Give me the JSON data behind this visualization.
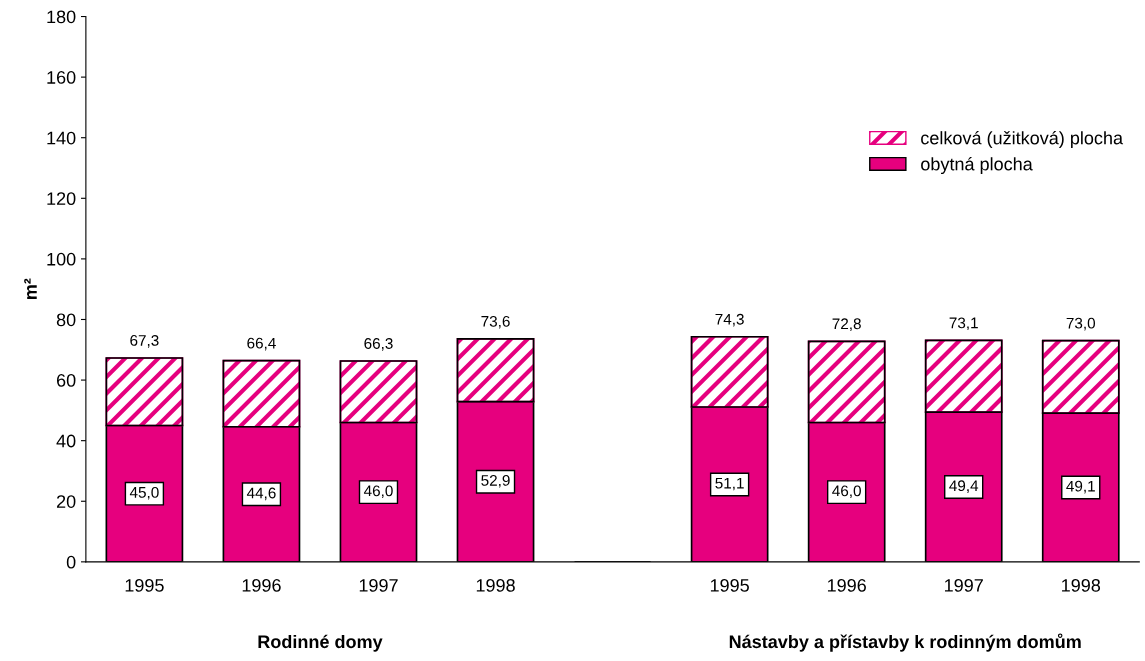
{
  "chart_data": {
    "type": "bar",
    "stacked": true,
    "categories": [
      "1995",
      "1996",
      "1997",
      "1998",
      null,
      "1995",
      "1996",
      "1997",
      "1998"
    ],
    "series": [
      {
        "name": "obytná plocha",
        "color": "#e6007e",
        "values": [
          45.0,
          44.6,
          46.0,
          52.9,
          null,
          51.1,
          46.0,
          49.4,
          49.1
        ],
        "value_labels": [
          "45,0",
          "44,6",
          "46,0",
          "52,9",
          null,
          "51,1",
          "46,0",
          "49,4",
          "49,1"
        ]
      },
      {
        "name": "celková (užitková) plocha",
        "color": "#e6007e",
        "values": [
          22.3,
          21.8,
          20.3,
          20.7,
          null,
          23.2,
          26.8,
          23.7,
          23.9
        ]
      }
    ],
    "totals": [
      "67,3",
      "66,4",
      "66,3",
      "73,6",
      null,
      "74,3",
      "72,8",
      "73,1",
      "73,0"
    ],
    "ylabel": "m²",
    "ylim": [
      0,
      180
    ],
    "yticks": [
      0,
      20,
      40,
      60,
      80,
      100,
      120,
      140,
      160,
      180
    ],
    "grid": false,
    "legend": "top right",
    "annotations": [
      "Rodinné domy",
      "Nástavby a přístavby k rodinným domům"
    ]
  }
}
